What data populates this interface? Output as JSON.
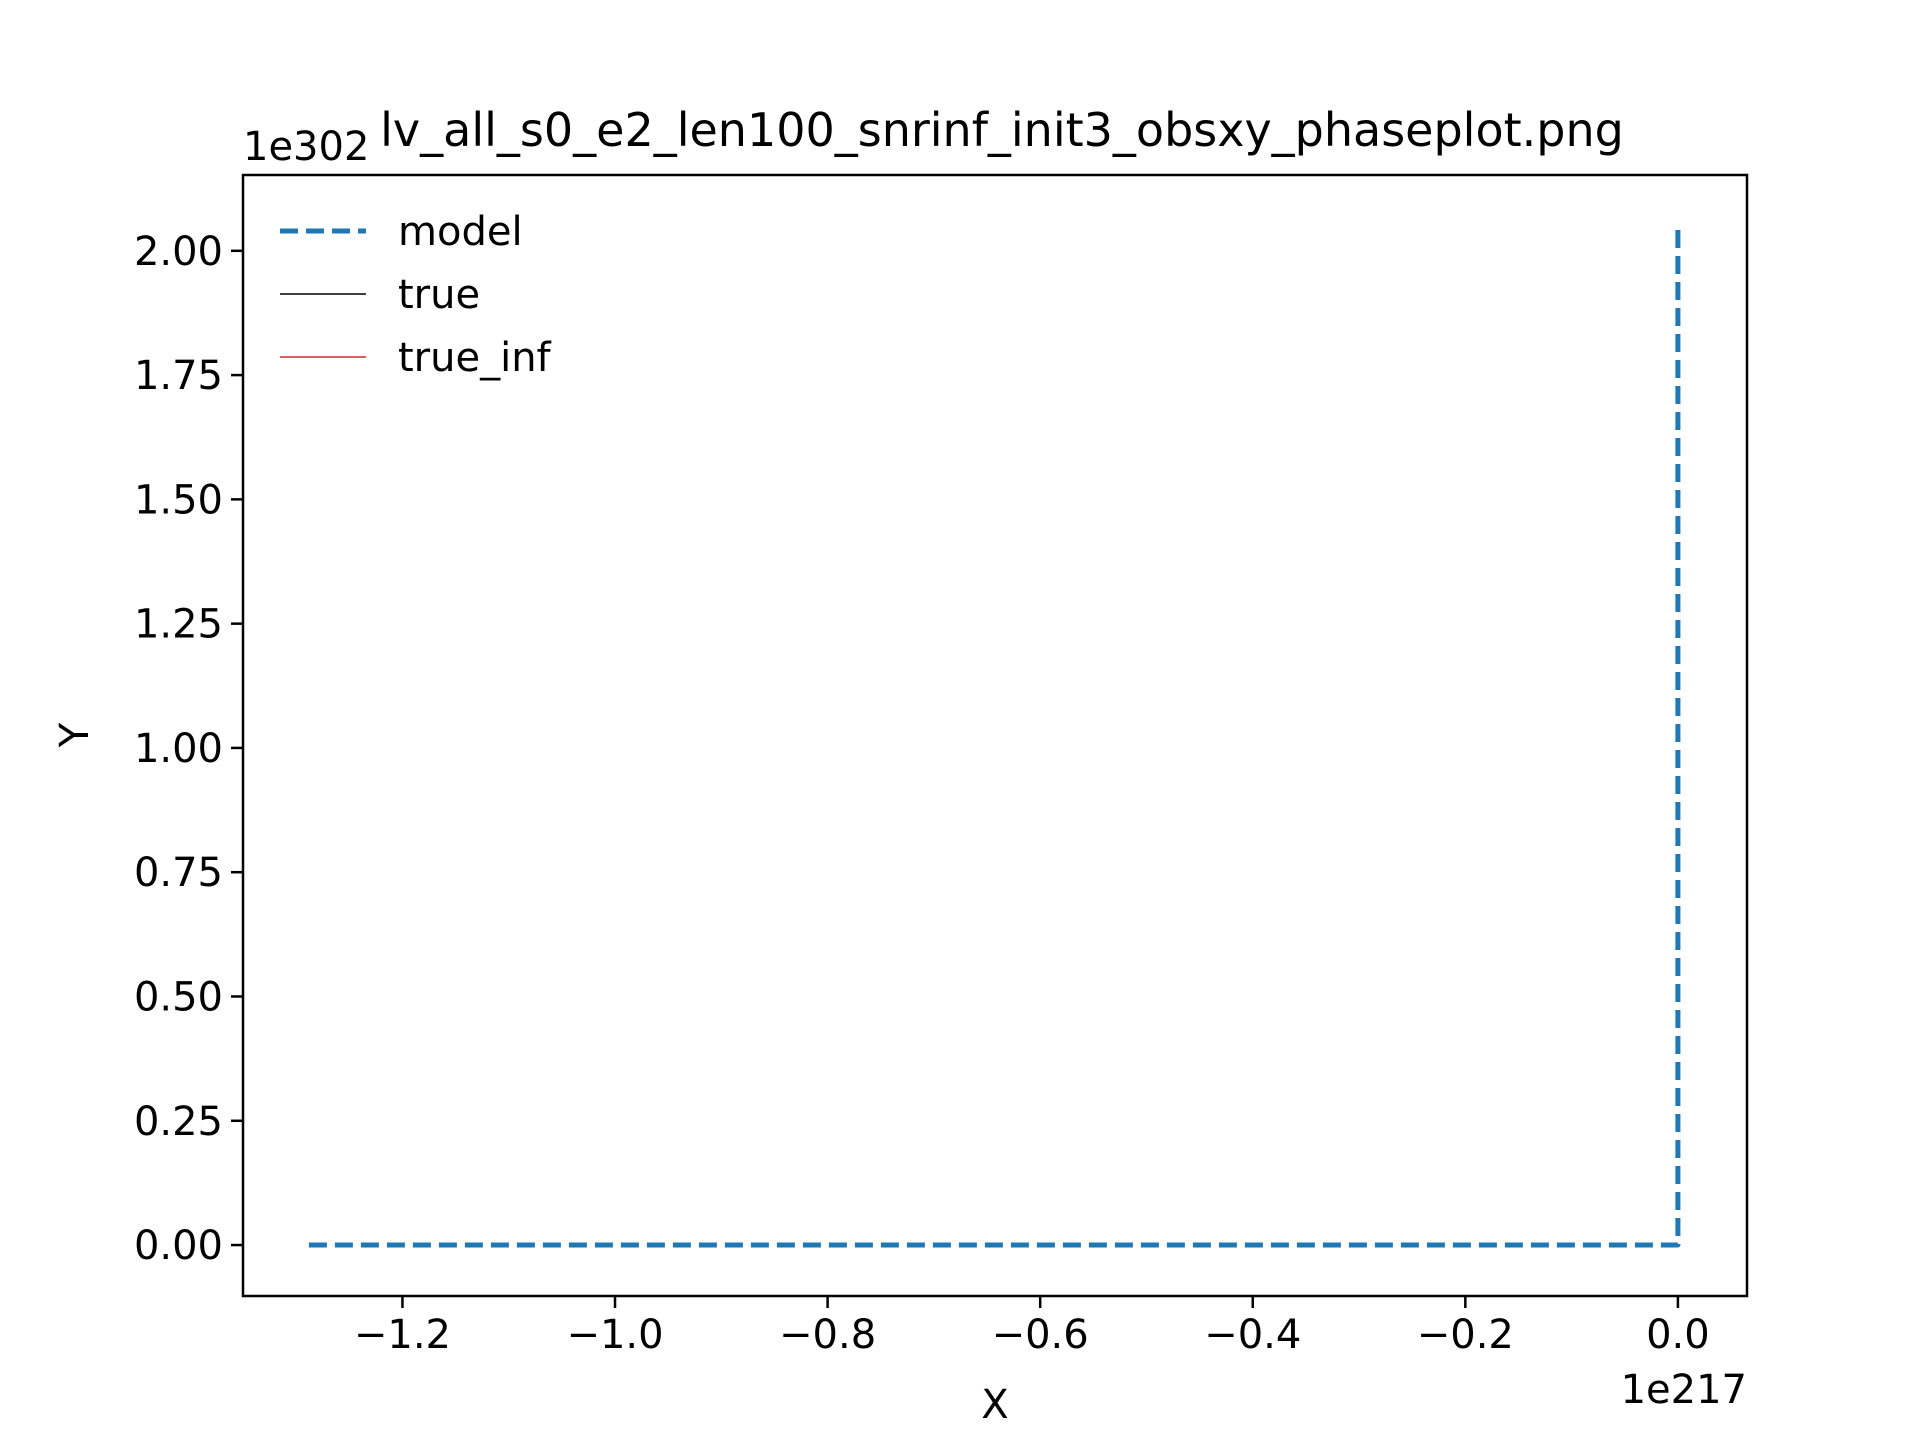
{
  "chart_data": {
    "type": "line",
    "title": "lv_all_s0_e2_len100_snrinf_init3_obsxy_phaseplot.png",
    "xlabel": "X",
    "ylabel": "Y",
    "x_offset_text": "1e217",
    "y_offset_text": "1e302",
    "x_scale_factor": "1e217",
    "y_scale_factor": "1e302",
    "xlim": [
      -1.35,
      0.065
    ],
    "ylim": [
      -0.1025,
      2.1525
    ],
    "x_ticks": [
      -1.2,
      -1.0,
      -0.8,
      -0.6,
      -0.4,
      -0.2,
      0.0
    ],
    "x_tick_labels": [
      "−1.2",
      "−1.0",
      "−0.8",
      "−0.6",
      "−0.4",
      "−0.2",
      "0.0"
    ],
    "y_ticks": [
      0.0,
      0.25,
      0.5,
      0.75,
      1.0,
      1.25,
      1.5,
      1.75,
      2.0
    ],
    "y_tick_labels": [
      "0.00",
      "0.25",
      "0.50",
      "0.75",
      "1.00",
      "1.25",
      "1.50",
      "1.75",
      "2.00"
    ],
    "grid": false,
    "legend_position": "top-left",
    "series": [
      {
        "name": "model",
        "color": "#1f77b4",
        "style": "dashed",
        "x": [
          -1.288,
          -1.0,
          -0.6,
          -0.2,
          0.0,
          0.0,
          0.0
        ],
        "y": [
          0.0,
          0.0,
          0.0,
          0.0,
          0.0,
          1.0,
          2.045
        ]
      },
      {
        "name": "true",
        "color": "#000000",
        "style": "solid",
        "x": [],
        "y": []
      },
      {
        "name": "true_inf",
        "color": "#d62728",
        "style": "solid",
        "x": [],
        "y": []
      }
    ]
  }
}
